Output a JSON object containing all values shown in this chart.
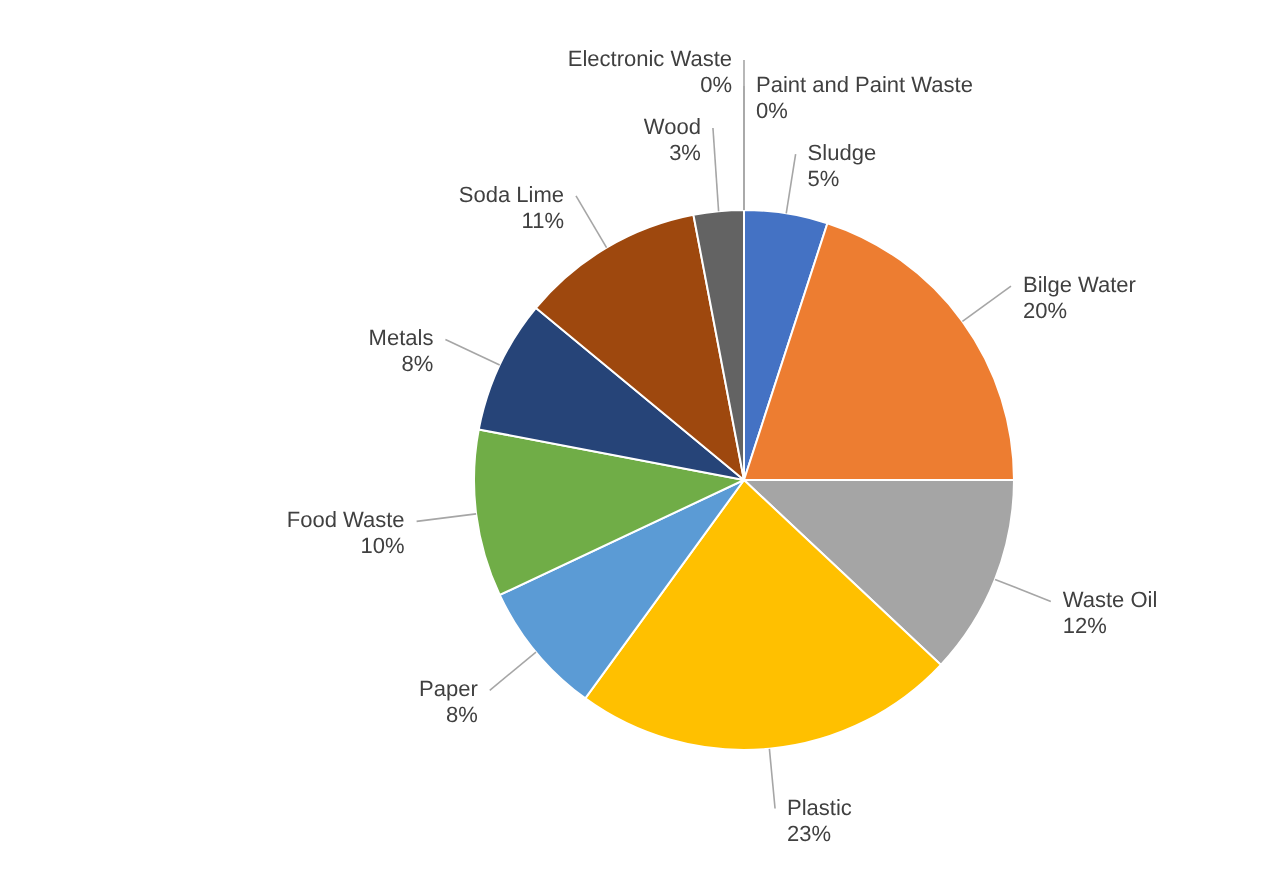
{
  "chart_data": {
    "type": "pie",
    "categories": [
      "Sludge",
      "Bilge Water",
      "Waste Oil",
      "Plastic",
      "Paper",
      "Food Waste",
      "Metals",
      "Soda Lime",
      "Wood",
      "Electronic Waste",
      "Paint and Paint Waste"
    ],
    "values": [
      5,
      20,
      12,
      23,
      8,
      10,
      8,
      11,
      3,
      0,
      0
    ],
    "colors": [
      "#4472c4",
      "#ed7d31",
      "#a5a5a5",
      "#ffc000",
      "#5b9bd5",
      "#70ad47",
      "#264478",
      "#9e480e",
      "#636363",
      "#997300",
      "#255e91"
    ],
    "value_labels": [
      "5%",
      "20%",
      "12%",
      "23%",
      "8%",
      "10%",
      "8%",
      "11%",
      "3%",
      "0%",
      "0%"
    ]
  }
}
